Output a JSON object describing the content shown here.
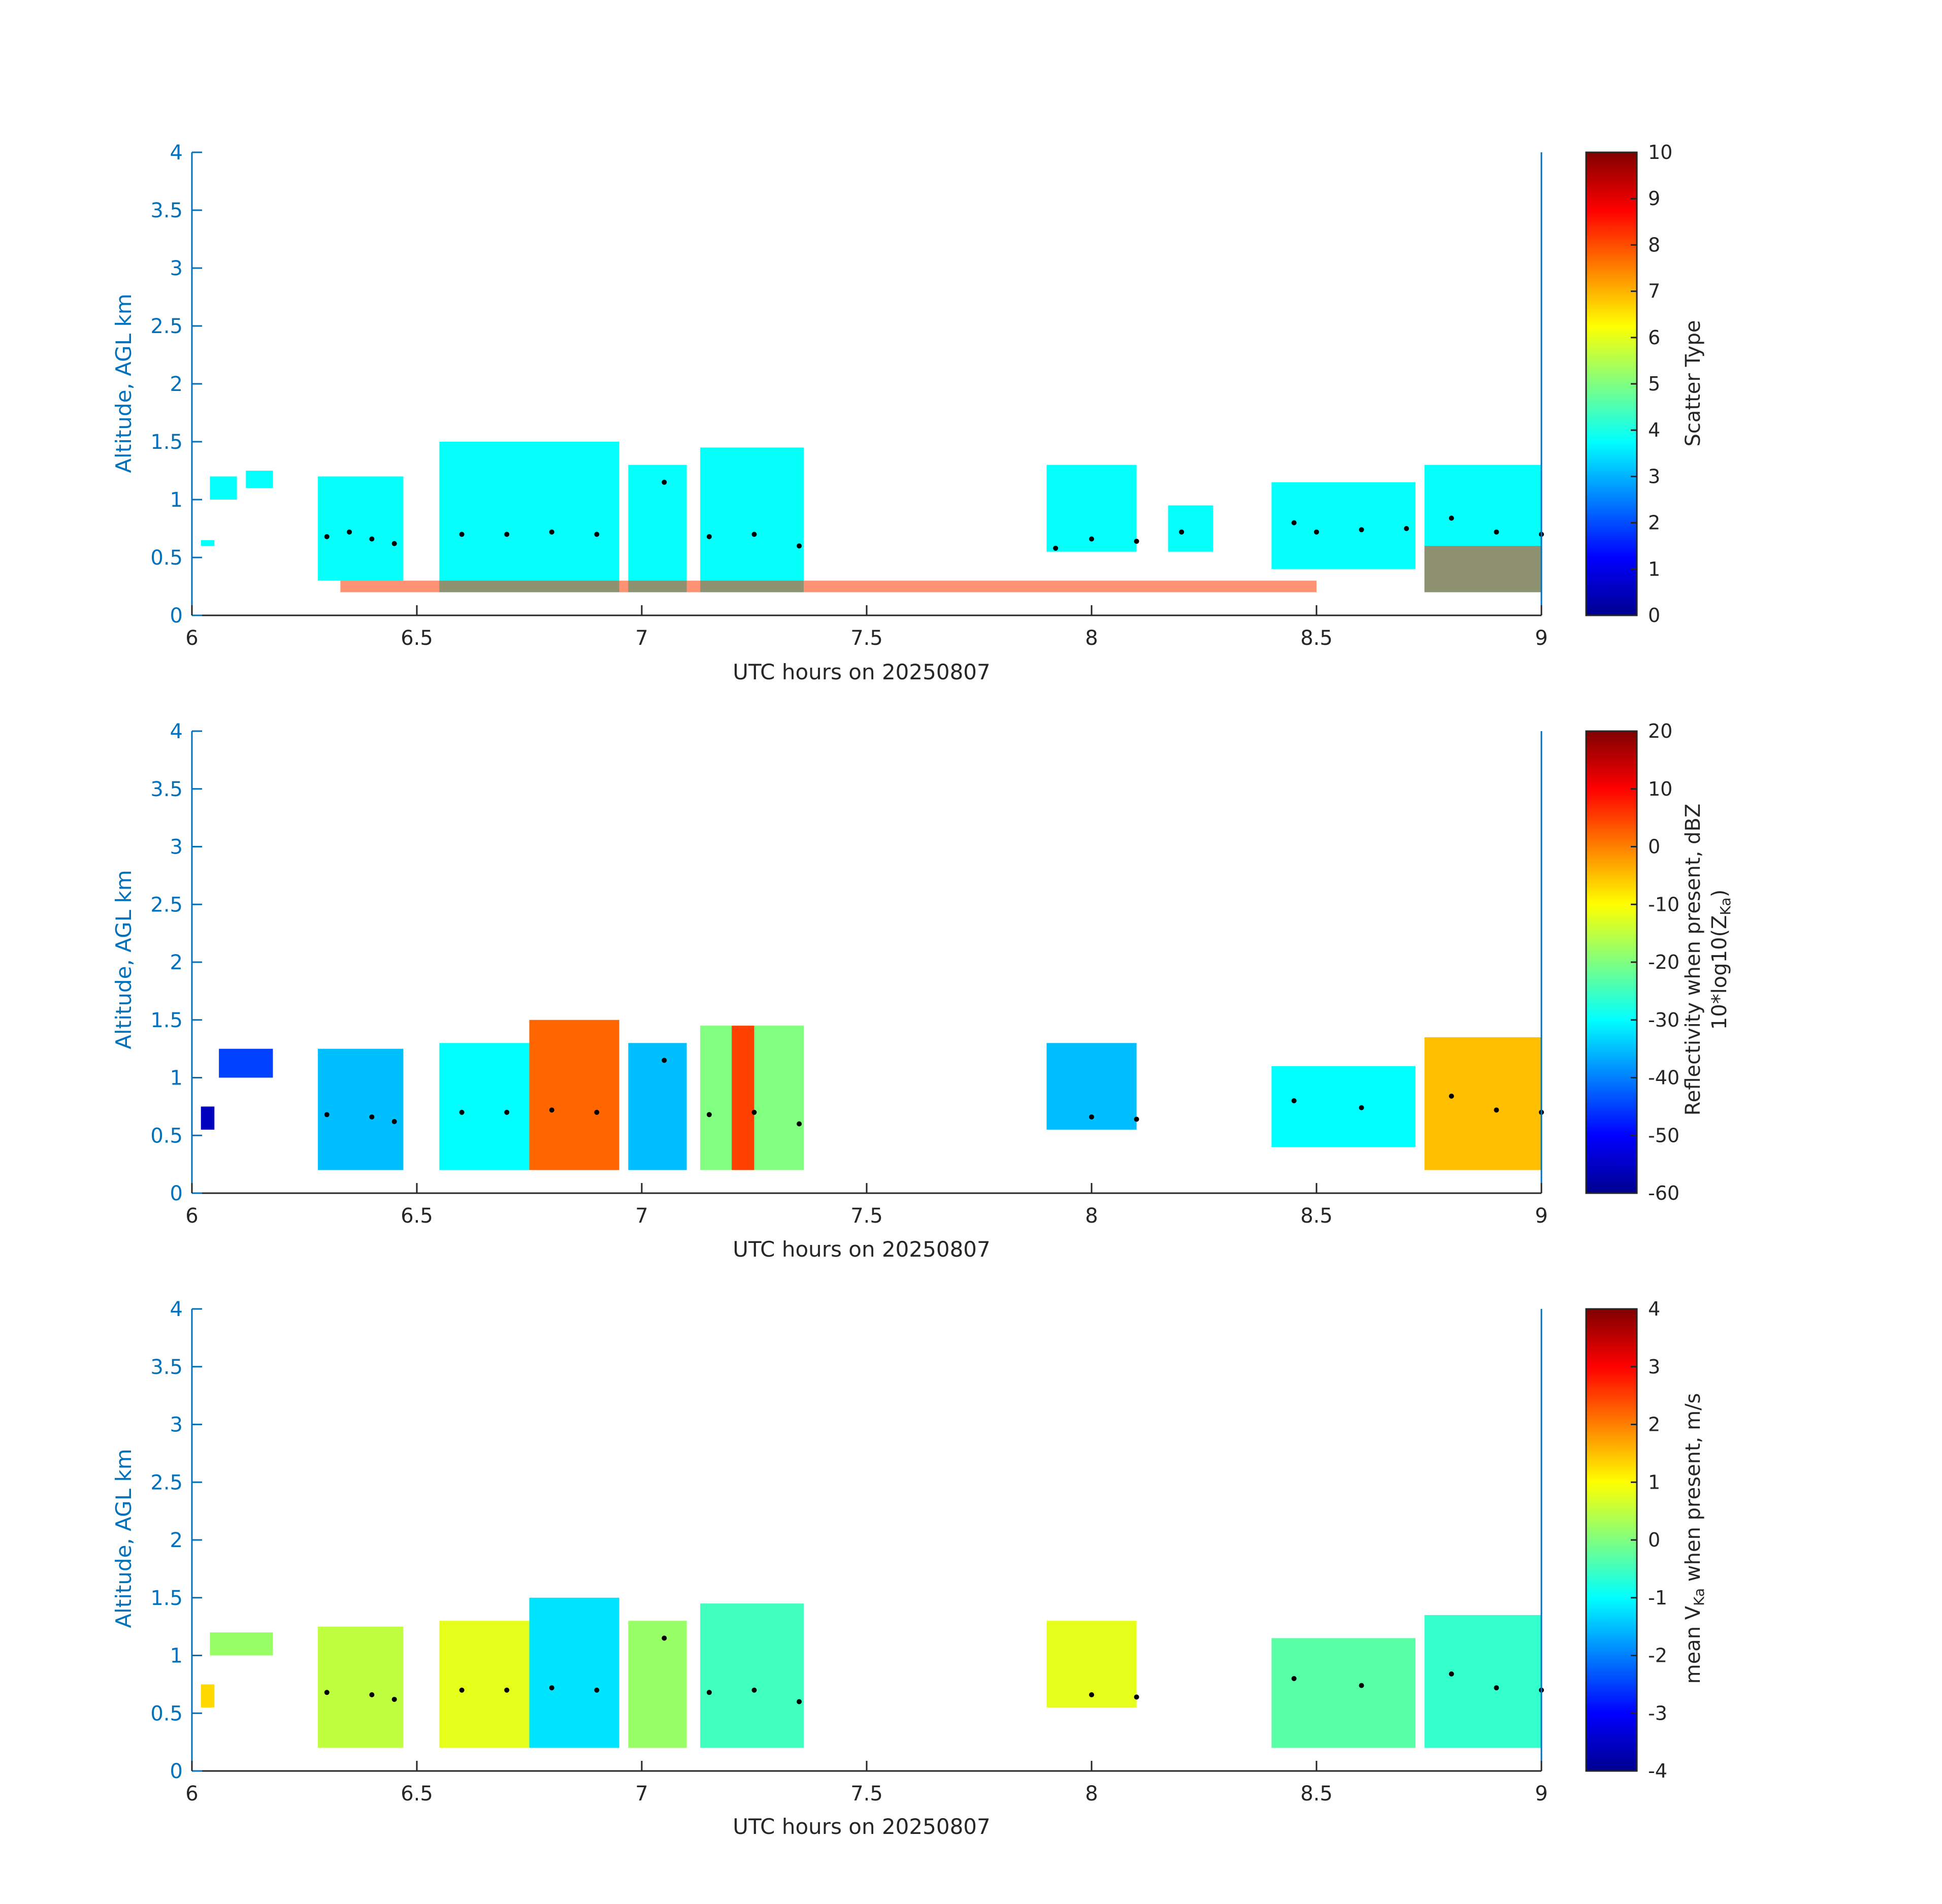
{
  "chart_data": [
    {
      "type": "heatmap",
      "xlabel": "UTC hours on 20250807",
      "ylabel": "Altitude, AGL km",
      "xlim": [
        6,
        9
      ],
      "ylim": [
        0,
        4
      ],
      "xticks": [
        "6",
        "6.5",
        "7",
        "7.5",
        "8",
        "8.5",
        "9"
      ],
      "yticks": [
        "0",
        "0.5",
        "1",
        "1.5",
        "2",
        "2.5",
        "3",
        "3.5",
        "4"
      ],
      "colorbar": {
        "label": "Scatter Type",
        "range": [
          0,
          10
        ],
        "ticks": [
          "0",
          "1",
          "2",
          "3",
          "4",
          "5",
          "6",
          "7",
          "8",
          "9",
          "10"
        ],
        "colormap": "jet"
      },
      "series": [
        {
          "name": "",
          "note_value": 3.8,
          "cloud_spans": [
            {
              "x0": 6.02,
              "x1": 6.05,
              "bottom": 0.6,
              "top": 0.65,
              "value": 3.8
            },
            {
              "x0": 6.04,
              "x1": 6.1,
              "bottom": 1.0,
              "top": 1.2,
              "value": 3.8
            },
            {
              "x0": 6.12,
              "x1": 6.18,
              "bottom": 1.1,
              "top": 1.25,
              "value": 3.8
            },
            {
              "x0": 6.28,
              "x1": 6.47,
              "bottom": 0.3,
              "top": 1.2,
              "value": 3.8
            },
            {
              "x0": 6.55,
              "x1": 6.95,
              "bottom": 0.2,
              "top": 1.5,
              "value": 3.8
            },
            {
              "x0": 6.97,
              "x1": 7.1,
              "bottom": 0.2,
              "top": 1.3,
              "value": 3.8
            },
            {
              "x0": 7.13,
              "x1": 7.36,
              "bottom": 0.2,
              "top": 1.45,
              "value": 3.8
            },
            {
              "x0": 7.9,
              "x1": 8.1,
              "bottom": 0.55,
              "top": 1.3,
              "value": 3.8
            },
            {
              "x0": 8.17,
              "x1": 8.27,
              "bottom": 0.55,
              "top": 0.95,
              "value": 3.8
            },
            {
              "x0": 8.4,
              "x1": 8.72,
              "bottom": 0.4,
              "top": 1.15,
              "value": 3.8
            },
            {
              "x0": 8.74,
              "x1": 9.0,
              "bottom": 0.2,
              "top": 1.3,
              "value": 3.8
            }
          ],
          "hot_spans": [
            {
              "x0": 6.33,
              "x1": 8.5,
              "bottom": 0.2,
              "top": 0.3,
              "value": 8.2
            },
            {
              "x0": 8.74,
              "x1": 9.0,
              "bottom": 0.2,
              "top": 0.6,
              "value": 8.2
            }
          ]
        }
      ],
      "cloud_base_dots": [
        [
          6.3,
          0.68
        ],
        [
          6.35,
          0.72
        ],
        [
          6.4,
          0.66
        ],
        [
          6.45,
          0.62
        ],
        [
          6.6,
          0.7
        ],
        [
          6.7,
          0.7
        ],
        [
          6.8,
          0.72
        ],
        [
          6.9,
          0.7
        ],
        [
          7.05,
          1.15
        ],
        [
          7.15,
          0.68
        ],
        [
          7.25,
          0.7
        ],
        [
          7.35,
          0.6
        ],
        [
          7.92,
          0.58
        ],
        [
          8.0,
          0.66
        ],
        [
          8.1,
          0.64
        ],
        [
          8.2,
          0.72
        ],
        [
          8.45,
          0.8
        ],
        [
          8.5,
          0.72
        ],
        [
          8.6,
          0.74
        ],
        [
          8.7,
          0.75
        ],
        [
          8.8,
          0.84
        ],
        [
          8.9,
          0.72
        ],
        [
          9.0,
          0.7
        ]
      ]
    },
    {
      "type": "heatmap",
      "xlabel": "UTC hours on 20250807",
      "ylabel": "Altitude, AGL km",
      "xlim": [
        6,
        9
      ],
      "ylim": [
        0,
        4
      ],
      "xticks": [
        "6",
        "6.5",
        "7",
        "7.5",
        "8",
        "8.5",
        "9"
      ],
      "yticks": [
        "0",
        "0.5",
        "1",
        "1.5",
        "2",
        "2.5",
        "3",
        "3.5",
        "4"
      ],
      "colorbar": {
        "label_line1": "Reflectivity when present, dBZ",
        "label_line2": "10*log10(Z",
        "label_line2_sub": "Ka",
        "label_line2_end": ")",
        "range": [
          -60,
          20
        ],
        "ticks": [
          "-60",
          "-50",
          "-40",
          "-30",
          "-20",
          "-10",
          "0",
          "10",
          "20"
        ],
        "colormap": "jet"
      },
      "cloud_spans": [
        {
          "x0": 6.02,
          "x1": 6.05,
          "bottom": 0.55,
          "top": 0.75,
          "value": -55
        },
        {
          "x0": 6.06,
          "x1": 6.18,
          "bottom": 1.0,
          "top": 1.25,
          "value": -45
        },
        {
          "x0": 6.28,
          "x1": 6.47,
          "bottom": 0.2,
          "top": 1.25,
          "value": -35
        },
        {
          "x0": 6.55,
          "x1": 6.75,
          "bottom": 0.2,
          "top": 1.3,
          "value": -30
        },
        {
          "x0": 6.75,
          "x1": 6.95,
          "bottom": 0.2,
          "top": 1.5,
          "value": 2
        },
        {
          "x0": 6.97,
          "x1": 7.1,
          "bottom": 0.2,
          "top": 1.3,
          "value": -35
        },
        {
          "x0": 7.13,
          "x1": 7.36,
          "bottom": 0.2,
          "top": 1.45,
          "value": -20
        },
        {
          "x0": 7.2,
          "x1": 7.25,
          "bottom": 0.2,
          "top": 1.45,
          "value": 5
        },
        {
          "x0": 7.9,
          "x1": 8.1,
          "bottom": 0.55,
          "top": 1.3,
          "value": -35
        },
        {
          "x0": 8.4,
          "x1": 8.72,
          "bottom": 0.4,
          "top": 1.1,
          "value": -30
        },
        {
          "x0": 8.74,
          "x1": 9.0,
          "bottom": 0.2,
          "top": 1.35,
          "value": -5
        }
      ],
      "cloud_base_dots": [
        [
          6.3,
          0.68
        ],
        [
          6.4,
          0.66
        ],
        [
          6.45,
          0.62
        ],
        [
          6.6,
          0.7
        ],
        [
          6.7,
          0.7
        ],
        [
          6.8,
          0.72
        ],
        [
          6.9,
          0.7
        ],
        [
          7.05,
          1.15
        ],
        [
          7.15,
          0.68
        ],
        [
          7.25,
          0.7
        ],
        [
          7.35,
          0.6
        ],
        [
          8.0,
          0.66
        ],
        [
          8.1,
          0.64
        ],
        [
          8.45,
          0.8
        ],
        [
          8.6,
          0.74
        ],
        [
          8.8,
          0.84
        ],
        [
          8.9,
          0.72
        ],
        [
          9.0,
          0.7
        ]
      ]
    },
    {
      "type": "heatmap",
      "xlabel": "UTC hours on 20250807",
      "ylabel": "Altitude, AGL km",
      "xlim": [
        6,
        9
      ],
      "ylim": [
        0,
        4
      ],
      "xticks": [
        "6",
        "6.5",
        "7",
        "7.5",
        "8",
        "8.5",
        "9"
      ],
      "yticks": [
        "0",
        "0.5",
        "1",
        "1.5",
        "2",
        "2.5",
        "3",
        "3.5",
        "4"
      ],
      "colorbar": {
        "label_start": "mean V",
        "label_sub": "Ka",
        "label_end": " when present, m/s",
        "range": [
          -4,
          4
        ],
        "ticks": [
          "-4",
          "-3",
          "-2",
          "-1",
          "0",
          "1",
          "2",
          "3",
          "4"
        ],
        "colormap": "jet"
      },
      "cloud_spans": [
        {
          "x0": 6.02,
          "x1": 6.05,
          "bottom": 0.55,
          "top": 0.75,
          "value": 1.3
        },
        {
          "x0": 6.04,
          "x1": 6.18,
          "bottom": 1.0,
          "top": 1.2,
          "value": 0.2
        },
        {
          "x0": 6.28,
          "x1": 6.47,
          "bottom": 0.2,
          "top": 1.25,
          "value": 0.5
        },
        {
          "x0": 6.55,
          "x1": 6.75,
          "bottom": 0.2,
          "top": 1.3,
          "value": 0.8
        },
        {
          "x0": 6.75,
          "x1": 6.95,
          "bottom": 0.2,
          "top": 1.5,
          "value": -1.2
        },
        {
          "x0": 6.97,
          "x1": 7.1,
          "bottom": 0.2,
          "top": 1.3,
          "value": 0.2
        },
        {
          "x0": 7.13,
          "x1": 7.36,
          "bottom": 0.2,
          "top": 1.45,
          "value": -0.5
        },
        {
          "x0": 7.9,
          "x1": 8.1,
          "bottom": 0.55,
          "top": 1.3,
          "value": 0.8
        },
        {
          "x0": 8.4,
          "x1": 8.72,
          "bottom": 0.2,
          "top": 1.15,
          "value": -0.3
        },
        {
          "x0": 8.74,
          "x1": 9.0,
          "bottom": 0.2,
          "top": 1.35,
          "value": -0.6
        }
      ],
      "cloud_base_dots": [
        [
          6.3,
          0.68
        ],
        [
          6.4,
          0.66
        ],
        [
          6.45,
          0.62
        ],
        [
          6.6,
          0.7
        ],
        [
          6.7,
          0.7
        ],
        [
          6.8,
          0.72
        ],
        [
          6.9,
          0.7
        ],
        [
          7.05,
          1.15
        ],
        [
          7.15,
          0.68
        ],
        [
          7.25,
          0.7
        ],
        [
          7.35,
          0.6
        ],
        [
          8.0,
          0.66
        ],
        [
          8.1,
          0.64
        ],
        [
          8.45,
          0.8
        ],
        [
          8.6,
          0.74
        ],
        [
          8.8,
          0.84
        ],
        [
          8.9,
          0.72
        ],
        [
          9.0,
          0.7
        ]
      ]
    }
  ]
}
